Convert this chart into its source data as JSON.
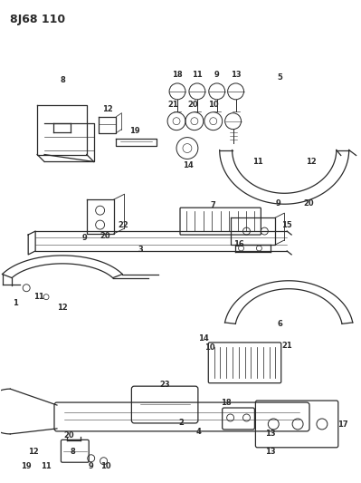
{
  "title": "8J68 110",
  "bg_color": "#ffffff",
  "line_color": "#2a2a2a",
  "label_fontsize": 6.0,
  "fig_width": 3.99,
  "fig_height": 5.33,
  "dpi": 100
}
